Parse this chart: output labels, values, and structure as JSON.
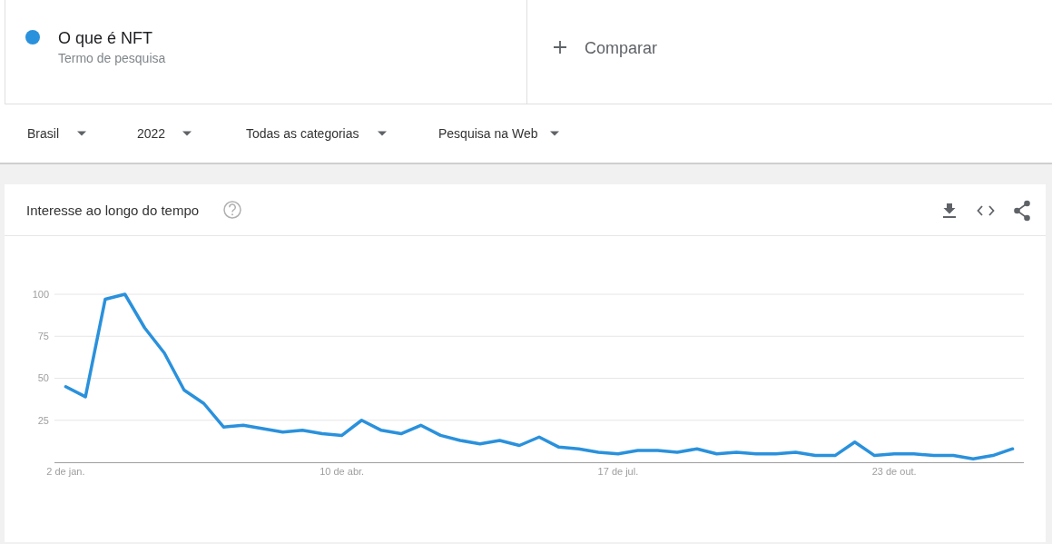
{
  "chart_data": {
    "type": "line",
    "title": "Interesse ao longo do tempo",
    "annotations": [
      "Termo de pesquisa",
      "Comparar",
      "Brasil",
      "2022",
      "Todas as categorias",
      "Pesquisa na Web"
    ],
    "x": [
      "2022-01-02",
      "2022-01-09",
      "2022-01-16",
      "2022-01-23",
      "2022-01-30",
      "2022-02-06",
      "2022-02-13",
      "2022-02-20",
      "2022-02-27",
      "2022-03-06",
      "2022-03-13",
      "2022-03-20",
      "2022-03-27",
      "2022-04-03",
      "2022-04-10",
      "2022-04-17",
      "2022-04-24",
      "2022-05-01",
      "2022-05-08",
      "2022-05-15",
      "2022-05-22",
      "2022-05-29",
      "2022-06-05",
      "2022-06-12",
      "2022-06-19",
      "2022-06-26",
      "2022-07-03",
      "2022-07-10",
      "2022-07-17",
      "2022-07-24",
      "2022-07-31",
      "2022-08-07",
      "2022-08-14",
      "2022-08-21",
      "2022-08-28",
      "2022-09-04",
      "2022-09-11",
      "2022-09-18",
      "2022-09-25",
      "2022-10-02",
      "2022-10-09",
      "2022-10-16",
      "2022-10-23",
      "2022-10-30",
      "2022-11-06",
      "2022-11-13",
      "2022-11-20",
      "2022-11-27",
      "2022-12-04"
    ],
    "series": [
      {
        "name": "O que é NFT",
        "color": "#2a91dc",
        "values": [
          45,
          39,
          97,
          100,
          80,
          65,
          43,
          35,
          21,
          22,
          20,
          18,
          19,
          17,
          16,
          25,
          19,
          17,
          22,
          16,
          13,
          11,
          13,
          10,
          15,
          9,
          8,
          6,
          5,
          7,
          7,
          6,
          8,
          5,
          6,
          5,
          5,
          6,
          4,
          4,
          12,
          4,
          5,
          5,
          4,
          4,
          2,
          4,
          8
        ]
      }
    ],
    "xlim": [
      "2021-12-29",
      "2022-12-08"
    ],
    "xticks": [
      {
        "value": "2022-01-02",
        "label": "2 de jan."
      },
      {
        "value": "2022-04-10",
        "label": "10 de abr."
      },
      {
        "value": "2022-07-17",
        "label": "17 de jul."
      },
      {
        "value": "2022-10-23",
        "label": "23 de out."
      }
    ],
    "ylim": [
      0,
      100
    ],
    "yticks": [
      25,
      50,
      75,
      100
    ],
    "grid": "y",
    "legend": "top left"
  }
}
